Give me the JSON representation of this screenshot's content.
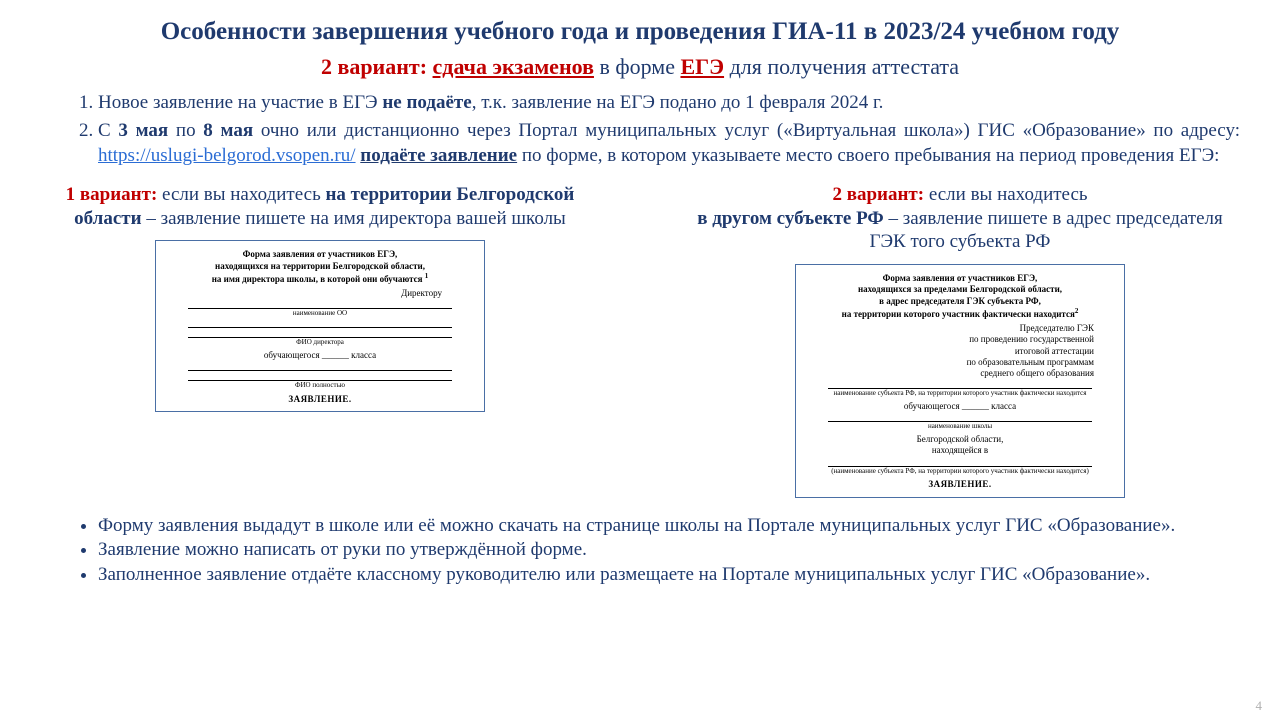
{
  "title": "Особенности завершения учебного года и проведения ГИА-11 в 2023/24 учебном году",
  "subtitle": {
    "prefix": "2 вариант: ",
    "mid": "сдача экзаменов",
    "after": " в форме ",
    "ege": "ЕГЭ",
    "tail": " для получения аттестата"
  },
  "list": {
    "item1_a": "Новое заявление на участие в ЕГЭ ",
    "item1_b": "не подаёте",
    "item1_c": ", т.к. заявление на ЕГЭ подано до 1 февраля 2024 г.",
    "item2_a": "С ",
    "item2_b": "3 мая",
    "item2_c": " по ",
    "item2_d": "8 мая",
    "item2_e": " очно или дистанционно через Портал муниципальных услуг («Виртуальная школа») ГИС «Образование» по адресу: ",
    "item2_link": "https://uslugi-belgorod.vsopen.ru/",
    "item2_f": " ",
    "item2_g": "подаёте заявление",
    "item2_h": " по форме, в котором указываете место своего пребывания на период проведения ЕГЭ:"
  },
  "col1": {
    "lead": "1 вариант:",
    "t1": " если вы находитесь ",
    "t2": "на территории Белгородской области",
    "t3": " – заявление пишете на имя директора вашей школы"
  },
  "col2": {
    "lead": "2 вариант:",
    "t1": " если вы находитесь",
    "t2": "в другом субъекте РФ",
    "t3": " – заявление пишете в адрес председателя ГЭК того субъекта РФ"
  },
  "form1": {
    "h1": "Форма заявления от участников ЕГЭ,",
    "h2": "находящихся на территории Белгородской области,",
    "h3": "на имя директора школы, в которой они обучаются",
    "sup": "1",
    "to": "Директору",
    "cap1": "наименование ОО",
    "cap2": "ФИО директора",
    "mid": "обучающегося ______ класса",
    "cap3": "ФИО полностью",
    "stmt": "ЗАЯВЛЕНИЕ."
  },
  "form2": {
    "h1": "Форма заявления от участников ЕГЭ,",
    "h2": "находящихся за пределами Белгородской области,",
    "h3": "в адрес председателя ГЭК субъекта РФ,",
    "h4": "на территории которого участник фактически находится",
    "sup": "2",
    "to1": "Председателю ГЭК",
    "to2": "по проведению государственной",
    "to3": "итоговой аттестации",
    "to4": "по образовательным программам",
    "to5": "среднего общего образования",
    "cap1": "наименование субъекта РФ, на территории которого участник фактически находится",
    "mid": "обучающегося ______ класса",
    "cap2": "наименование школы",
    "bel1": "Белгородской области,",
    "bel2": "находящейся в",
    "cap3": "(наименование субъекта РФ, на территории которого участник фактически находится)",
    "stmt": "ЗАЯВЛЕНИЕ."
  },
  "bottom": {
    "b1": "Форму заявления выдадут в школе или её можно скачать на странице школы на Портале муниципальных услуг ГИС «Образование».",
    "b2": "Заявление можно написать от руки по утверждённой форме.",
    "b3": "Заполненное заявление отдаёте классному руководителю или размещаете на Портале муниципальных услуг ГИС «Образование»."
  },
  "page": "4",
  "colors": {
    "navy": "#1f3a6e",
    "red": "#c00000",
    "link": "#2a6cd4",
    "border": "#4a6fa5",
    "bg": "#ffffff"
  }
}
